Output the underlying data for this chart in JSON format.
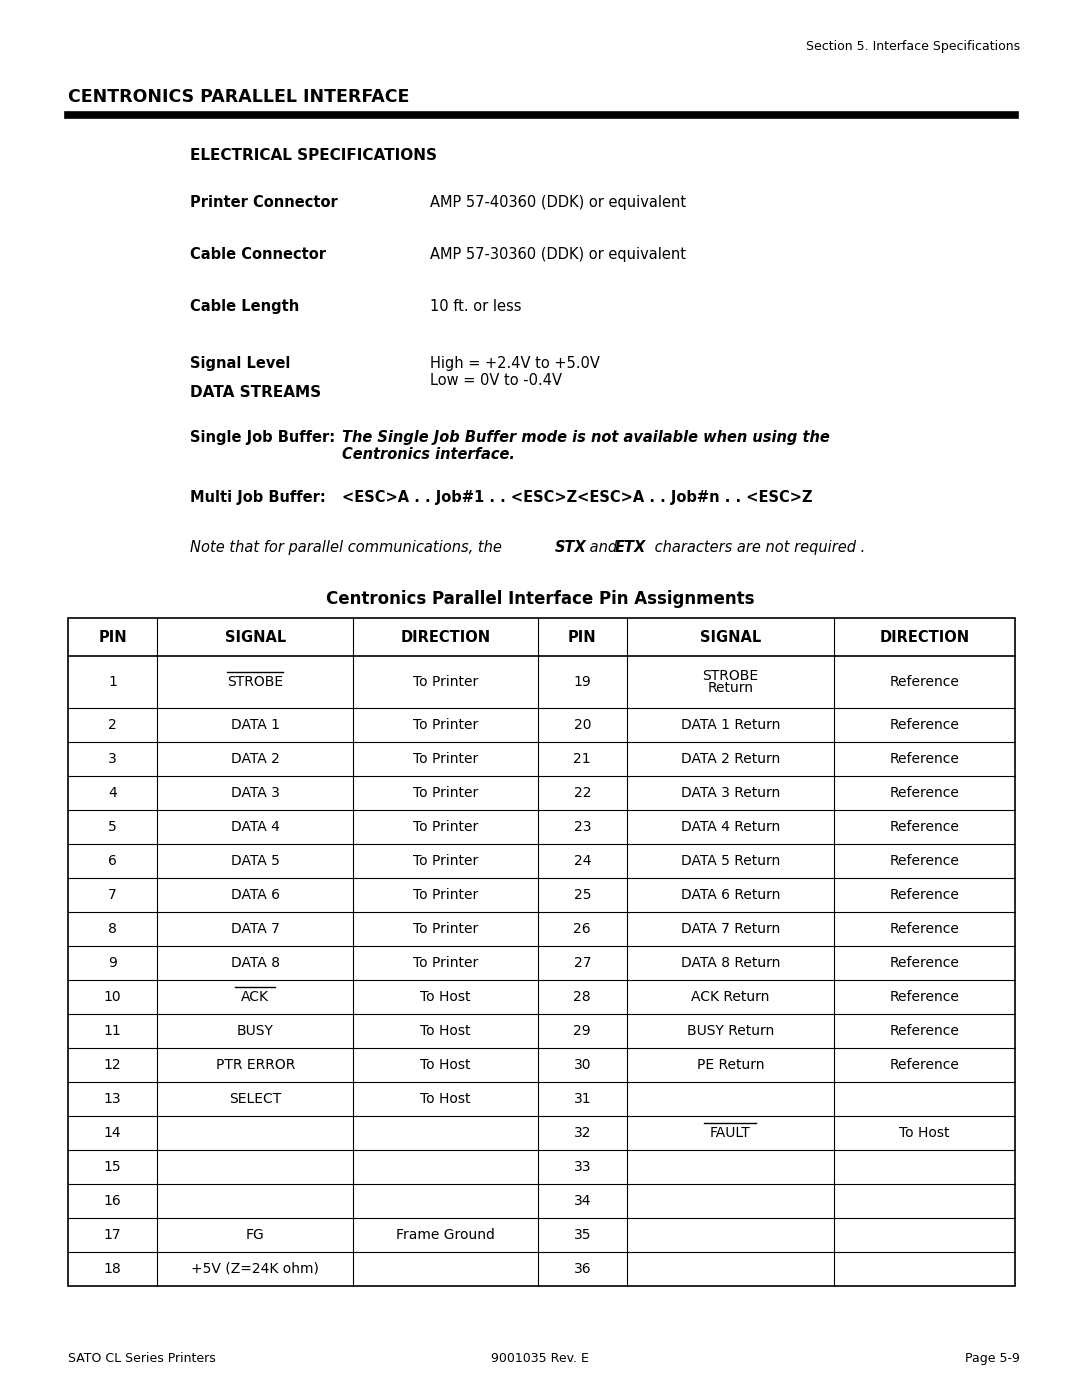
{
  "page_header": "Section 5. Interface Specifications",
  "main_title": "CENTRONICS PARALLEL INTERFACE",
  "section1_title": "ELECTRICAL SPECIFICATIONS",
  "spec_items": [
    {
      "label": "Printer Connector",
      "value": "AMP 57-40360 (DDK) or equivalent"
    },
    {
      "label": "Cable Connector",
      "value": "AMP 57-30360 (DDK) or equivalent"
    },
    {
      "label": "Cable Length",
      "value": "10 ft. or less"
    },
    {
      "label": "Signal Level",
      "value": "High = +2.4V to +5.0V\nLow = 0V to -0.4V"
    }
  ],
  "section2_title": "DATA STREAMS",
  "single_job_label": "Single Job Buffer:",
  "single_job_italic": "The Single Job Buffer mode is not available when using the\nCentronics interface.",
  "multi_job_label": "Multi Job Buffer:",
  "multi_job_value": "<ESC>A . . Job#1 . . <ESC>Z<ESC>A . . Job#n . . <ESC>Z",
  "note_italic_pre": "Note that for parallel communications, the ",
  "note_stx": "STX",
  "note_and": " and ",
  "note_etx": "ETX",
  "note_end": " characters are not required .",
  "table_title": "Centronics Parallel Interface Pin Assignments",
  "table_headers": [
    "PIN",
    "SIGNAL",
    "DIRECTION",
    "PIN",
    "SIGNAL",
    "DIRECTION"
  ],
  "table_rows": [
    [
      "1",
      "STROBE",
      "To Printer",
      "19",
      "STROBE\nReturn",
      "Reference"
    ],
    [
      "2",
      "DATA 1",
      "To Printer",
      "20",
      "DATA 1 Return",
      "Reference"
    ],
    [
      "3",
      "DATA 2",
      "To Printer",
      "21",
      "DATA 2 Return",
      "Reference"
    ],
    [
      "4",
      "DATA 3",
      "To Printer",
      "22",
      "DATA 3 Return",
      "Reference"
    ],
    [
      "5",
      "DATA 4",
      "To Printer",
      "23",
      "DATA 4 Return",
      "Reference"
    ],
    [
      "6",
      "DATA 5",
      "To Printer",
      "24",
      "DATA 5 Return",
      "Reference"
    ],
    [
      "7",
      "DATA 6",
      "To Printer",
      "25",
      "DATA 6 Return",
      "Reference"
    ],
    [
      "8",
      "DATA 7",
      "To Printer",
      "26",
      "DATA 7 Return",
      "Reference"
    ],
    [
      "9",
      "DATA 8",
      "To Printer",
      "27",
      "DATA 8 Return",
      "Reference"
    ],
    [
      "10",
      "ACK",
      "To Host",
      "28",
      "ACK Return",
      "Reference"
    ],
    [
      "11",
      "BUSY",
      "To Host",
      "29",
      "BUSY Return",
      "Reference"
    ],
    [
      "12",
      "PTR ERROR",
      "To Host",
      "30",
      "PE Return",
      "Reference"
    ],
    [
      "13",
      "SELECT",
      "To Host",
      "31",
      "",
      ""
    ],
    [
      "14",
      "",
      "",
      "32",
      "FAULT",
      "To Host"
    ],
    [
      "15",
      "",
      "",
      "33",
      "",
      ""
    ],
    [
      "16",
      "",
      "",
      "34",
      "",
      ""
    ],
    [
      "17",
      "FG",
      "Frame Ground",
      "35",
      "",
      ""
    ],
    [
      "18",
      "+5V (Z=24K ohm)",
      "",
      "36",
      "",
      ""
    ]
  ],
  "footer_left": "SATO CL Series Printers",
  "footer_center": "9001035 Rev. E",
  "footer_right": "Page 5-9",
  "bg_color": "#ffffff",
  "text_color": "#000000"
}
